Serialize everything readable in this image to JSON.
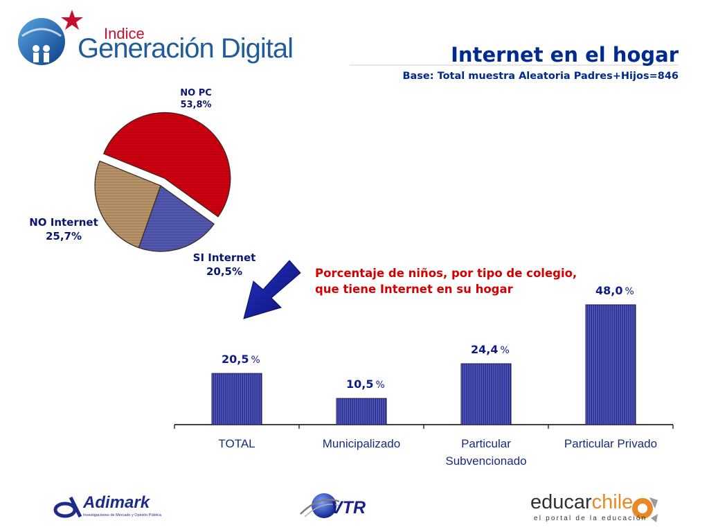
{
  "header": {
    "logo_small": "Indice",
    "logo_big": "Generación Digital",
    "title": "Internet en el hogar",
    "subtitle": "Base: Total muestra Aleatoria Padres+Hijos=846"
  },
  "colors": {
    "title": "#002a8f",
    "caption": "#d40000",
    "no_pc": "#d00010",
    "si_internet": "#5258b0",
    "no_internet": "#b9946a",
    "bars": "#2a2f9a"
  },
  "chart_data": [
    {
      "type": "pie",
      "slices": [
        {
          "label": "NO PC",
          "value": 53.8,
          "value_label": "53,8%",
          "exploded": true
        },
        {
          "label": "SI Internet",
          "value": 20.5,
          "value_label": "20,5%"
        },
        {
          "label": "NO Internet",
          "value": 25.7,
          "value_label": "25,7%"
        }
      ]
    },
    {
      "type": "bar",
      "title": "Porcentaje de niños, por tipo de colegio, que tiene Internet en su hogar",
      "title_lines": [
        "Porcentaje de niños, por tipo de colegio,",
        "que tiene Internet en su hogar"
      ],
      "categories": [
        "TOTAL",
        "Municipalizado",
        "Particular Subvencionado",
        "Particular Privado"
      ],
      "category_lines": [
        [
          "TOTAL"
        ],
        [
          "Municipalizado"
        ],
        [
          "Particular",
          "Subvencionado"
        ],
        [
          "Particular Privado"
        ]
      ],
      "values": [
        20.5,
        10.5,
        24.4,
        48.0
      ],
      "value_labels": [
        "20,5",
        "10,5",
        "24,4",
        "48,0"
      ],
      "unit": "%",
      "ylim": [
        0,
        48.0
      ],
      "grid": false
    }
  ],
  "footer": {
    "adimark": "Adimark",
    "adimark_tagline": "Investigaciones de Mercado y Opinión Pública",
    "vtr": "VTR",
    "educar_a": "educar",
    "educar_b": "chile",
    "educar_tagline": "el portal de la educación"
  }
}
